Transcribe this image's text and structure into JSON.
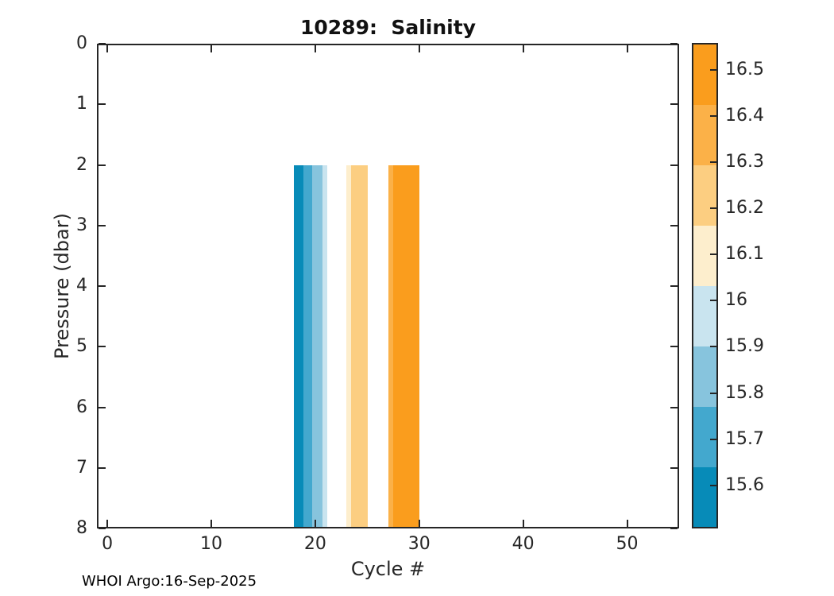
{
  "footer": {
    "text": "WHOI Argo:16-Sep-2025"
  },
  "colors": {
    "background": "#ffffff",
    "axis": "#262626",
    "title_text": "#111111"
  },
  "chart_data": {
    "type": "heatmap",
    "title": "10289:  Salinity",
    "xlabel": "Cycle #",
    "ylabel": "Pressure (dbar)",
    "xlim": [
      -1,
      55
    ],
    "ylim": [
      0,
      8
    ],
    "y_axis_reversed": true,
    "grid": false,
    "xticks": [
      0,
      10,
      20,
      30,
      40,
      50
    ],
    "yticks": [
      0,
      1,
      2,
      3,
      4,
      5,
      6,
      7,
      8
    ],
    "colormap": [
      "#078bb8",
      "#43a8ce",
      "#87c4dd",
      "#c9e4ef",
      "#fdeecd",
      "#fcce81",
      "#fbb148",
      "#fa9d1d"
    ],
    "cells": [
      {
        "c0": 17.98,
        "c1": 18.83,
        "p0": 2,
        "p1": 8,
        "band": 0,
        "salinity_approx": 15.57
      },
      {
        "c0": 18.83,
        "c1": 19.68,
        "p0": 2,
        "p1": 8,
        "band": 1,
        "salinity_approx": 15.71
      },
      {
        "c0": 19.68,
        "c1": 20.68,
        "p0": 2,
        "p1": 8,
        "band": 2,
        "salinity_approx": 15.84
      },
      {
        "c0": 20.68,
        "c1": 21.14,
        "p0": 2,
        "p1": 8,
        "band": 3,
        "salinity_approx": 15.97
      },
      {
        "c0": 22.97,
        "c1": 23.42,
        "p0": 2,
        "p1": 8,
        "band": 4,
        "salinity_approx": 16.1
      },
      {
        "c0": 23.42,
        "c1": 25.05,
        "p0": 2,
        "p1": 8,
        "band": 5,
        "salinity_approx": 16.23
      },
      {
        "c0": 27.03,
        "c1": 27.48,
        "p0": 2,
        "p1": 8,
        "band": 6,
        "salinity_approx": 16.36
      },
      {
        "c0": 27.48,
        "c1": 29.99,
        "p0": 2,
        "p1": 8,
        "band": 7,
        "salinity_approx": 16.49
      }
    ],
    "colorbar": {
      "vmin": 15.51,
      "vmax": 16.555,
      "n_bands": 8,
      "tick_values": [
        16.5,
        16.4,
        16.3,
        16.2,
        16.1,
        16.0,
        15.9,
        15.8,
        15.7,
        15.6
      ],
      "tick_labels": [
        "16.5",
        "16.4",
        "16.3",
        "16.2",
        "16.1",
        "16",
        "15.9",
        "15.8",
        "15.7",
        "15.6"
      ],
      "position": "right"
    }
  }
}
